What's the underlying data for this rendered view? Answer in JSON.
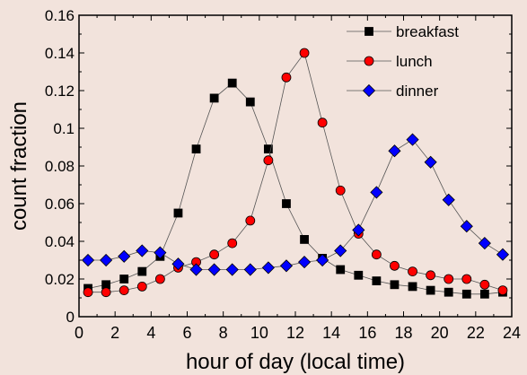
{
  "chart_data": {
    "type": "line",
    "title": "",
    "xlabel": "hour of day (local time)",
    "ylabel": "count fraction",
    "xlim": [
      0,
      24
    ],
    "ylim": [
      0,
      0.16
    ],
    "xticks": [
      0,
      2,
      4,
      6,
      8,
      10,
      12,
      14,
      16,
      18,
      20,
      22,
      24
    ],
    "xtick_labels": [
      "0",
      "2",
      "4",
      "6",
      "8",
      "10",
      "12",
      "14",
      "16",
      "18",
      "20",
      "22",
      "24"
    ],
    "yticks": [
      0,
      0.02,
      0.04,
      0.06,
      0.08,
      0.1,
      0.12,
      0.14,
      0.16
    ],
    "ytick_labels": [
      "0",
      "0.02",
      "0.04",
      "0.06",
      "0.08",
      "0.1",
      "0.12",
      "0.14",
      "0.16"
    ],
    "grid": false,
    "legend_position": "top-right",
    "x": [
      0.5,
      1.5,
      2.5,
      3.5,
      4.5,
      5.5,
      6.5,
      7.5,
      8.5,
      9.5,
      10.5,
      11.5,
      12.5,
      13.5,
      14.5,
      15.5,
      16.5,
      17.5,
      18.5,
      19.5,
      20.5,
      21.5,
      22.5,
      23.5
    ],
    "series": [
      {
        "name": "breakfast",
        "color": "#000000",
        "marker": "square",
        "values": [
          0.015,
          0.017,
          0.02,
          0.024,
          0.032,
          0.055,
          0.089,
          0.116,
          0.124,
          0.114,
          0.089,
          0.06,
          0.041,
          0.031,
          0.025,
          0.022,
          0.019,
          0.017,
          0.016,
          0.014,
          0.013,
          0.012,
          0.012,
          0.013
        ]
      },
      {
        "name": "lunch",
        "color": "#ff0000",
        "marker": "circle",
        "values": [
          0.013,
          0.013,
          0.014,
          0.016,
          0.02,
          0.026,
          0.029,
          0.033,
          0.039,
          0.051,
          0.083,
          0.127,
          0.14,
          0.103,
          0.067,
          0.044,
          0.033,
          0.027,
          0.024,
          0.022,
          0.02,
          0.02,
          0.017,
          0.014
        ]
      },
      {
        "name": "dinner",
        "color": "#0000ff",
        "marker": "diamond",
        "values": [
          0.03,
          0.03,
          0.032,
          0.035,
          0.034,
          0.028,
          0.025,
          0.025,
          0.025,
          0.025,
          0.026,
          0.027,
          0.029,
          0.03,
          0.035,
          0.046,
          0.066,
          0.088,
          0.094,
          0.082,
          0.062,
          0.048,
          0.039,
          0.033
        ]
      }
    ]
  }
}
